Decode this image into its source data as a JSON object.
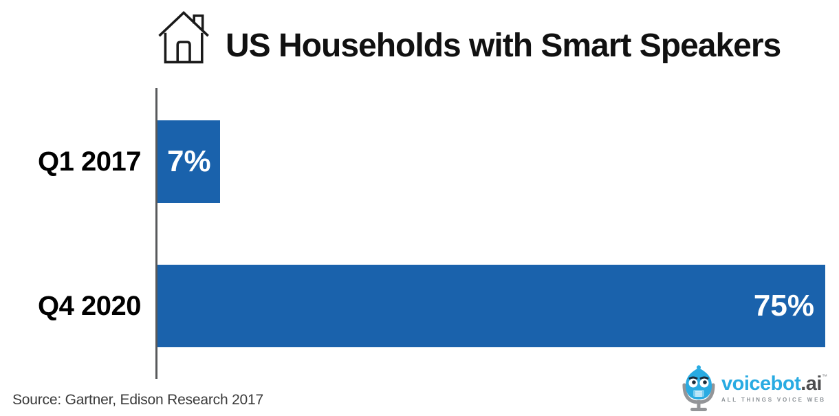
{
  "title": "US Households with Smart Speakers",
  "source_note": "Source: Gartner, Edison Research 2017",
  "colors": {
    "bar": "#1A62AC",
    "axis": "#58595B",
    "bar_value_text": "#FFFFFF",
    "category_label_text": "#000000",
    "title_text": "#111111",
    "source_text": "#3A3A3A",
    "logo_brand": "#29ABE2",
    "logo_suffix": "#4D4D4F",
    "logo_tagline": "#8B9196"
  },
  "icons": {
    "title_icon": "house-icon",
    "logo_icon": "voicebot-robot-mascot"
  },
  "logo": {
    "brand": "voicebot",
    "suffix": ".ai",
    "trademark": "™",
    "tagline": "ALL THINGS VOICE WEB"
  },
  "chart_data": {
    "type": "bar",
    "orientation": "horizontal",
    "title": "US Households with Smart Speakers",
    "categories": [
      "Q1 2017",
      "Q4 2020"
    ],
    "values": [
      7,
      75
    ],
    "value_labels": [
      "7%",
      "75%"
    ],
    "value_label_align": [
      "start",
      "end"
    ],
    "xlim": [
      0,
      75
    ],
    "xlabel": "",
    "ylabel": "",
    "grid": false,
    "legend": false,
    "source": "Source: Gartner, Edison Research 2017"
  }
}
